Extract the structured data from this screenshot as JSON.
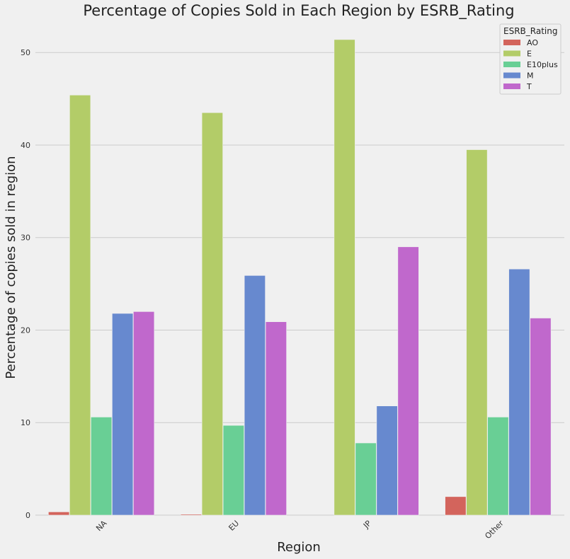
{
  "chart_data": {
    "type": "bar",
    "title": "Percentage of Copies Sold in Each Region by ESRB_Rating",
    "xlabel": "Region",
    "ylabel": "Percentage of copies sold in region",
    "categories": [
      "NA",
      "EU",
      "JP",
      "Other"
    ],
    "ylim": [
      0,
      53
    ],
    "yticks": [
      0,
      10,
      20,
      30,
      40,
      50
    ],
    "grid": true,
    "legend": {
      "title": "ESRB_Rating",
      "placement": "top-right"
    },
    "series": [
      {
        "name": "AO",
        "color": "#d3645c",
        "values": [
          0.35,
          0.1,
          0.0,
          2.0
        ]
      },
      {
        "name": "E",
        "color": "#b3cc68",
        "values": [
          45.4,
          43.5,
          51.4,
          39.5
        ]
      },
      {
        "name": "E10plus",
        "color": "#69cf95",
        "values": [
          10.6,
          9.7,
          7.8,
          10.6
        ]
      },
      {
        "name": "M",
        "color": "#6789cf",
        "values": [
          21.8,
          25.9,
          11.8,
          26.6
        ]
      },
      {
        "name": "T",
        "color": "#c068cc",
        "values": [
          22.0,
          20.9,
          29.0,
          21.3
        ]
      }
    ]
  }
}
